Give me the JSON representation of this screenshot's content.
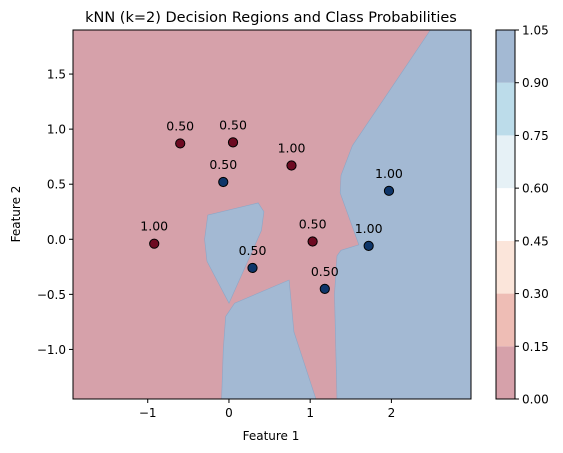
{
  "chart_data": {
    "type": "scatter",
    "title": "kNN (k=2) Decision Regions and Class Probabilities",
    "xlabel": "Feature 1",
    "ylabel": "Feature 2",
    "xlim": [
      -1.92,
      2.98
    ],
    "ylim": [
      -1.45,
      1.9
    ],
    "xticks": [
      -1,
      0,
      1,
      2
    ],
    "yticks": [
      -1.0,
      -0.5,
      0.0,
      0.5,
      1.0,
      1.5
    ],
    "xtick_labels": [
      "−1",
      "0",
      "1",
      "2"
    ],
    "ytick_labels": [
      "−1.0",
      "−0.5",
      "0.0",
      "0.5",
      "1.0",
      "1.5"
    ],
    "grid": false,
    "colorbar": {
      "levels": [
        0.0,
        0.15,
        0.3,
        0.45,
        0.6,
        0.75,
        0.9,
        1.05
      ],
      "tick_labels": [
        "0.00",
        "0.15",
        "0.30",
        "0.45",
        "0.60",
        "0.75",
        "0.90",
        "1.05"
      ],
      "colors": [
        "#d6a1aa",
        "#eebdb5",
        "#fbe5da",
        "#ffffff",
        "#e6f1f6",
        "#bcdcea",
        "#a3b9d3"
      ]
    },
    "region_colors": {
      "class0": "#d6a1aa",
      "class1": "#a3b9d3"
    },
    "regions_class1": [
      [
        [
          1.33,
          -1.45
        ],
        [
          2.98,
          -1.45
        ],
        [
          2.98,
          1.9
        ],
        [
          2.48,
          1.9
        ],
        [
          1.52,
          0.85
        ],
        [
          1.38,
          0.58
        ],
        [
          1.37,
          0.42
        ],
        [
          1.6,
          -0.05
        ],
        [
          1.38,
          -0.1
        ],
        [
          1.33,
          -0.15
        ],
        [
          1.3,
          -0.5
        ]
      ],
      [
        [
          -0.26,
          0.22
        ],
        [
          0.36,
          0.33
        ],
        [
          0.43,
          0.25
        ],
        [
          0.4,
          0.08
        ],
        [
          0.0,
          -0.58
        ],
        [
          -0.27,
          -0.2
        ],
        [
          -0.3,
          0.0
        ]
      ],
      [
        [
          -0.09,
          -1.45
        ],
        [
          1.07,
          -1.45
        ],
        [
          0.8,
          -0.84
        ],
        [
          0.74,
          -0.37
        ],
        [
          0.07,
          -0.58
        ],
        [
          -0.04,
          -0.7
        ],
        [
          -0.07,
          -1.0
        ]
      ]
    ],
    "points": [
      {
        "x": -0.6,
        "y": 0.87,
        "class": 0,
        "label": "0.50"
      },
      {
        "x": 0.05,
        "y": 0.88,
        "class": 0,
        "label": "0.50"
      },
      {
        "x": -0.07,
        "y": 0.52,
        "class": 1,
        "label": "0.50"
      },
      {
        "x": 0.77,
        "y": 0.67,
        "class": 0,
        "label": "1.00"
      },
      {
        "x": 1.97,
        "y": 0.44,
        "class": 1,
        "label": "1.00"
      },
      {
        "x": -0.92,
        "y": -0.04,
        "class": 0,
        "label": "1.00"
      },
      {
        "x": 1.03,
        "y": -0.02,
        "class": 0,
        "label": "0.50"
      },
      {
        "x": 1.72,
        "y": -0.06,
        "class": 1,
        "label": "1.00"
      },
      {
        "x": 0.29,
        "y": -0.26,
        "class": 1,
        "label": "0.50"
      },
      {
        "x": 1.18,
        "y": -0.45,
        "class": 1,
        "label": "0.50"
      }
    ],
    "point_colors": {
      "class0": "#6d0b22",
      "class1": "#0e3569"
    }
  }
}
